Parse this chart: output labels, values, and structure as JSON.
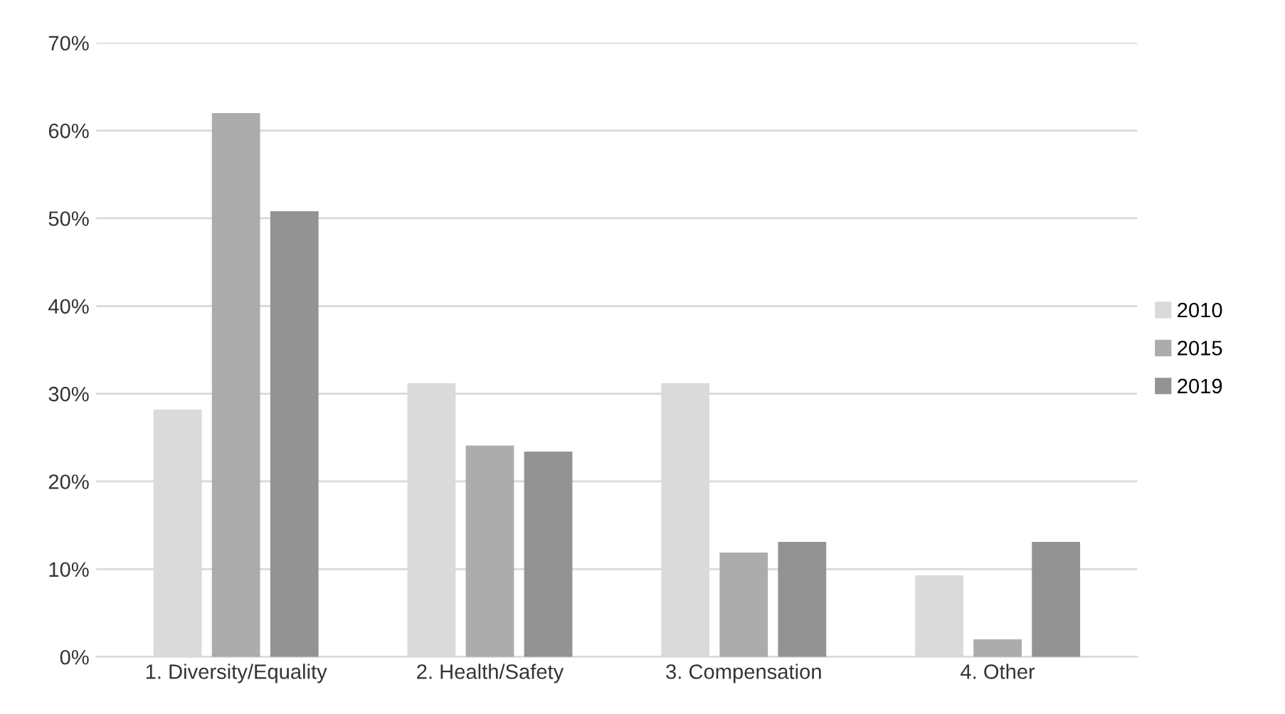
{
  "chart_data": {
    "type": "bar",
    "categories": [
      "1. Diversity/Equality",
      "2. Health/Safety",
      "3. Compensation",
      "4. Other"
    ],
    "series": [
      {
        "name": "2010",
        "color": "#dadada",
        "values": [
          28.2,
          31.2,
          31.2,
          9.3
        ]
      },
      {
        "name": "2015",
        "color": "#acacac",
        "values": [
          62.0,
          24.1,
          11.9,
          2.0
        ]
      },
      {
        "name": "2019",
        "color": "#939393",
        "values": [
          50.8,
          23.4,
          13.1,
          13.1
        ]
      }
    ],
    "ylim": [
      0,
      70
    ],
    "yticks": [
      {
        "value": 0,
        "label": "0%"
      },
      {
        "value": 10,
        "label": "10%"
      },
      {
        "value": 20,
        "label": "20%"
      },
      {
        "value": 30,
        "label": "30%"
      },
      {
        "value": 40,
        "label": "40%"
      },
      {
        "value": 50,
        "label": "50%"
      },
      {
        "value": 60,
        "label": "60%"
      },
      {
        "value": 70,
        "label": "70%"
      }
    ],
    "grid": "y",
    "legend": "right"
  }
}
